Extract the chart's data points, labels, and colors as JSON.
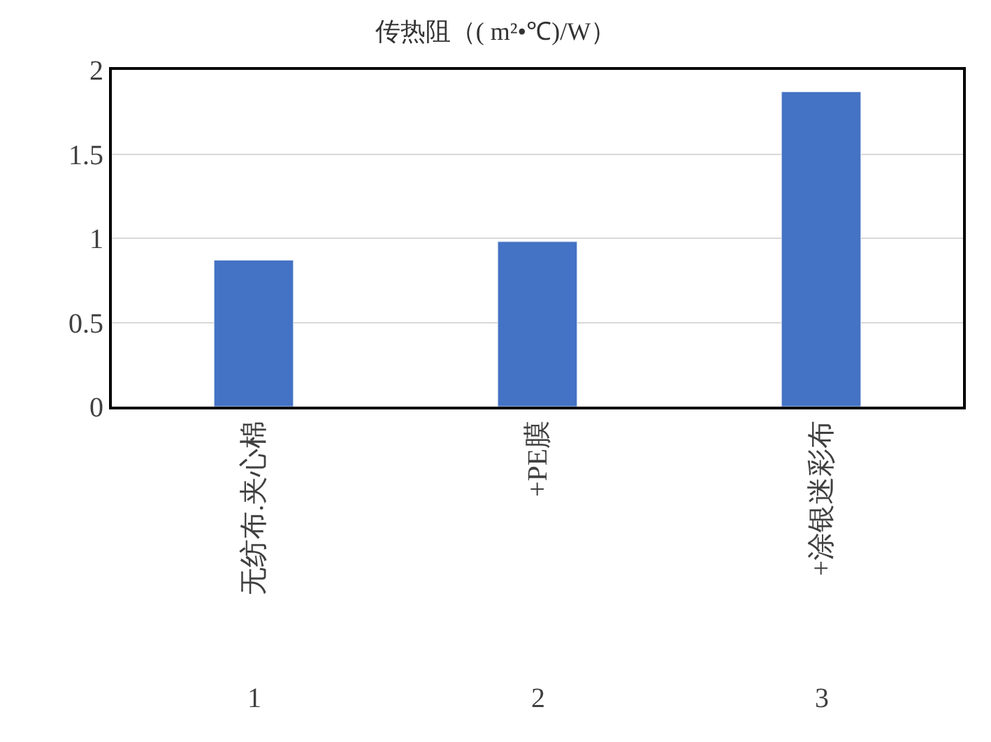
{
  "chart_data": {
    "type": "bar",
    "title": "传热阻（( m²•℃)/W）",
    "categories": [
      "无纺布.夹心棉",
      "+PE膜",
      "+涂银迷彩布"
    ],
    "values": [
      0.87,
      0.98,
      1.87
    ],
    "color": "#4472c4",
    "ylim": [
      0,
      2
    ],
    "yticks": [
      0,
      0.5,
      1,
      1.5,
      2
    ],
    "grid": "y",
    "annotations": [
      "1",
      "2",
      "3"
    ]
  }
}
